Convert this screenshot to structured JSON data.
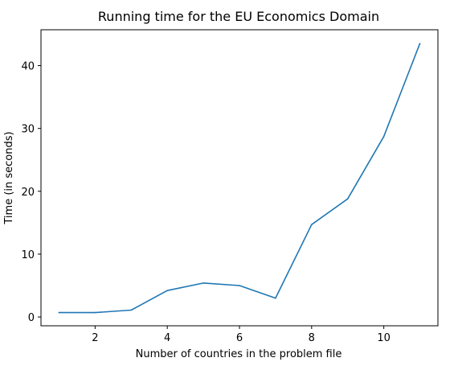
{
  "chart_data": {
    "type": "line",
    "title": "Running time for the EU Economics Domain",
    "xlabel": "Number of countries in the problem file",
    "ylabel": "Time (in seconds)",
    "xlim": [
      0.5,
      11.5
    ],
    "ylim": [
      -1.4,
      45.7
    ],
    "xticks": [
      2,
      4,
      6,
      8,
      10
    ],
    "yticks": [
      0,
      10,
      20,
      30,
      40
    ],
    "grid": false,
    "series": [
      {
        "color": "#1f77b4",
        "x": [
          1,
          2,
          3,
          4,
          5,
          6,
          7,
          8,
          9,
          10,
          11
        ],
        "y": [
          0.7,
          0.7,
          1.1,
          4.2,
          5.4,
          5.0,
          3.0,
          14.7,
          18.8,
          28.7,
          43.5
        ]
      }
    ]
  }
}
